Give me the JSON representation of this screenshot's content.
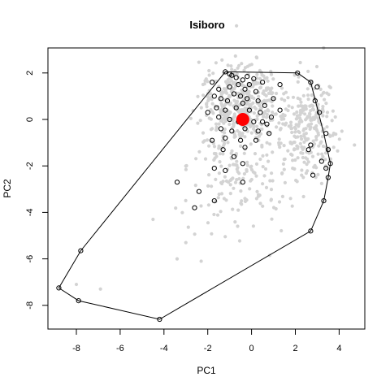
{
  "chart_data": {
    "type": "scatter",
    "title": "Isiboro",
    "xlabel": "PC1",
    "ylabel": "PC2",
    "xlim": [
      -9,
      5
    ],
    "ylim": [
      -9,
      3
    ],
    "grid": false,
    "legend": "none",
    "x_ticks": [
      -8,
      -6,
      -4,
      -2,
      0,
      2,
      4
    ],
    "y_ticks": [
      -8,
      -6,
      -4,
      -2,
      0,
      2
    ],
    "colors": {
      "background_points": "#d3d3d3",
      "selected_points": "#000000",
      "hull": "#000000",
      "centroid": "#ff0000"
    },
    "hull_vertices": [
      [
        -1.2,
        2.05
      ],
      [
        2.1,
        2.0
      ],
      [
        2.7,
        1.6
      ],
      [
        3.3,
        -0.6
      ],
      [
        3.6,
        -1.9
      ],
      [
        3.5,
        -2.5
      ],
      [
        3.3,
        -3.5
      ],
      [
        2.7,
        -4.8
      ],
      [
        -4.2,
        -8.6
      ],
      [
        -7.9,
        -7.8
      ],
      [
        -8.8,
        -7.25
      ],
      [
        -7.8,
        -5.65
      ]
    ],
    "selected_points": [
      [
        -1.2,
        2.05
      ],
      [
        2.1,
        2.0
      ],
      [
        2.7,
        1.6
      ],
      [
        -1.8,
        1.6
      ],
      [
        -0.9,
        1.9
      ],
      [
        -0.7,
        1.8
      ],
      [
        -0.4,
        1.7
      ],
      [
        -0.2,
        1.85
      ],
      [
        0.1,
        1.75
      ],
      [
        -1.5,
        1.3
      ],
      [
        -1.0,
        1.4
      ],
      [
        -0.6,
        1.5
      ],
      [
        -0.3,
        1.3
      ],
      [
        0.2,
        1.2
      ],
      [
        -0.8,
        1.1
      ],
      [
        -0.5,
        1.0
      ],
      [
        -1.4,
        0.9
      ],
      [
        -1.1,
        0.8
      ],
      [
        -0.2,
        0.9
      ],
      [
        0.3,
        0.8
      ],
      [
        0.6,
        0.6
      ],
      [
        -1.6,
        0.5
      ],
      [
        -1.2,
        0.4
      ],
      [
        -0.7,
        0.5
      ],
      [
        -0.1,
        0.4
      ],
      [
        0.4,
        0.3
      ],
      [
        -1.5,
        0.1
      ],
      [
        -1.0,
        0.0
      ],
      [
        -0.6,
        -0.1
      ],
      [
        0.1,
        -0.1
      ],
      [
        0.7,
        -0.2
      ],
      [
        0.9,
        0.1
      ],
      [
        -1.4,
        -0.4
      ],
      [
        -0.9,
        -0.5
      ],
      [
        -0.3,
        -0.4
      ],
      [
        0.3,
        -0.5
      ],
      [
        -1.8,
        -0.9
      ],
      [
        -1.2,
        -0.8
      ],
      [
        -0.5,
        -0.9
      ],
      [
        -1.3,
        -1.3
      ],
      [
        -0.8,
        -1.6
      ],
      [
        -0.3,
        -1.2
      ],
      [
        -1.2,
        -2.2
      ],
      [
        -0.4,
        -1.9
      ],
      [
        -1.7,
        -2.1
      ],
      [
        -0.4,
        -2.7
      ],
      [
        -2.4,
        -3.1
      ],
      [
        -3.4,
        -2.7
      ],
      [
        -1.7,
        -3.5
      ],
      [
        -2.6,
        -3.8
      ],
      [
        1.3,
        1.5
      ],
      [
        1.0,
        0.9
      ],
      [
        1.3,
        0.4
      ],
      [
        0.5,
        -0.1
      ],
      [
        3.0,
        1.4
      ],
      [
        2.9,
        0.8
      ],
      [
        3.1,
        0.3
      ],
      [
        3.4,
        -0.6
      ],
      [
        3.5,
        -1.3
      ],
      [
        2.7,
        -1.1
      ],
      [
        3.2,
        -1.8
      ],
      [
        2.6,
        -1.3
      ],
      [
        3.6,
        -1.9
      ],
      [
        3.4,
        -2.1
      ],
      [
        3.5,
        -2.5
      ],
      [
        2.8,
        -2.4
      ],
      [
        3.3,
        -3.5
      ],
      [
        2.7,
        -4.8
      ],
      [
        -7.8,
        -5.65
      ],
      [
        -8.8,
        -7.25
      ],
      [
        -7.9,
        -7.8
      ],
      [
        -4.2,
        -8.6
      ],
      [
        -2.0,
        0.3
      ],
      [
        -1.7,
        1.0
      ],
      [
        -0.1,
        1.5
      ],
      [
        0.5,
        1.6
      ],
      [
        -1.0,
        1.95
      ],
      [
        -0.4,
        0.7
      ],
      [
        0.2,
        -0.9
      ],
      [
        0.8,
        -0.6
      ]
    ],
    "background_points_count": 850,
    "centroid": [
      -0.4,
      0.0
    ]
  }
}
